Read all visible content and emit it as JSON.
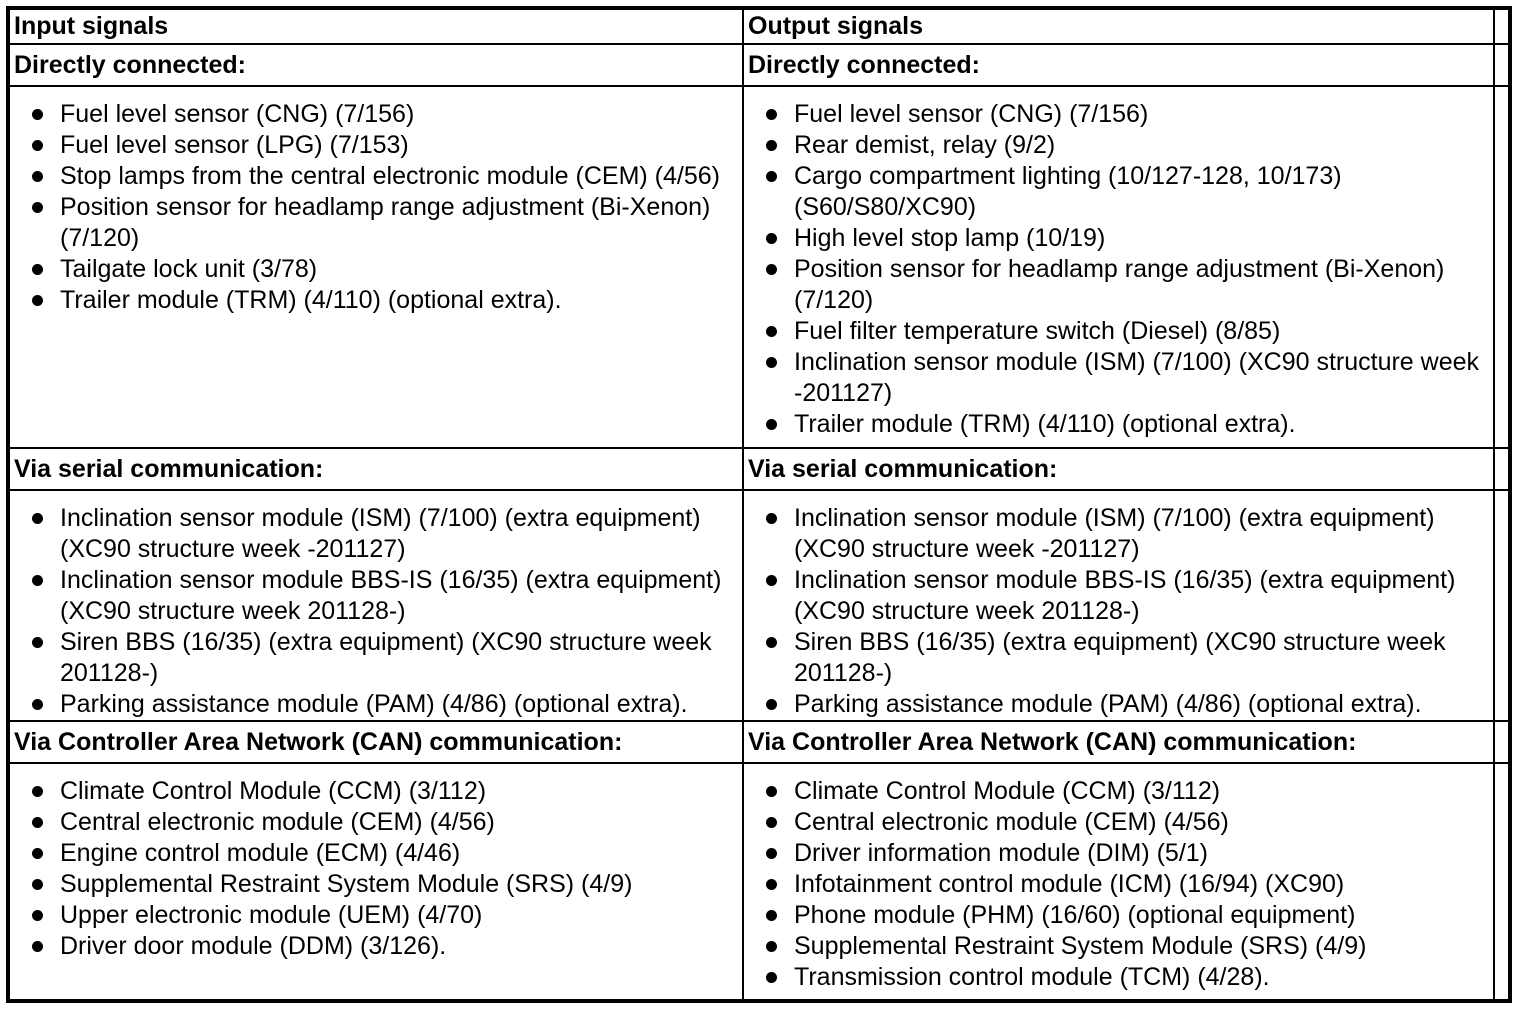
{
  "colors": {
    "border": "#000000",
    "text": "#000000",
    "background": "#ffffff"
  },
  "table": {
    "columns": [
      {
        "header": "Input signals",
        "sections": [
          {
            "title": "Directly connected:",
            "items": [
              "Fuel level sensor (CNG) (7/156)",
              "Fuel level sensor (LPG) (7/153)",
              "Stop lamps from the central electronic module (CEM) (4/56)",
              "Position sensor for headlamp range adjustment (Bi-Xenon)\n(7/120)",
              "Tailgate lock unit (3/78)",
              "Trailer module (TRM) (4/110) (optional extra)."
            ]
          },
          {
            "title": "Via serial communication:",
            "items": [
              "Inclination sensor module (ISM) (7/100) (extra equipment)\n(XC90 structure week -201127)",
              "Inclination sensor module BBS-IS (16/35) (extra equipment)\n(XC90 structure week 201128-)",
              "Siren BBS (16/35) (extra equipment) (XC90 structure week\n201128-)",
              "Parking assistance module (PAM) (4/86) (optional extra)."
            ]
          },
          {
            "title": "Via Controller Area Network (CAN) communication:",
            "items": [
              "Climate Control Module (CCM) (3/112)",
              "Central electronic module (CEM) (4/56)",
              "Engine control module (ECM) (4/46)",
              "Supplemental Restraint System Module (SRS) (4/9)",
              "Upper electronic module (UEM) (4/70)",
              "Driver door module (DDM) (3/126)."
            ]
          }
        ]
      },
      {
        "header": "Output signals",
        "sections": [
          {
            "title": "Directly connected:",
            "items": [
              "Fuel level sensor (CNG) (7/156)",
              "Rear demist, relay (9/2)",
              "Cargo compartment lighting (10/127-128, 10/173)\n(S60/S80/XC90)",
              "High level stop lamp (10/19)",
              "Position sensor for headlamp range adjustment (Bi-Xenon)\n(7/120)",
              "Fuel filter temperature switch (Diesel) (8/85)",
              "Inclination sensor module (ISM) (7/100) (XC90 structure week\n-201127)",
              "Trailer module (TRM) (4/110) (optional extra)."
            ]
          },
          {
            "title": "Via serial communication:",
            "items": [
              "Inclination sensor module (ISM) (7/100) (extra equipment)\n(XC90 structure week -201127)",
              "Inclination sensor module BBS-IS (16/35) (extra equipment)\n(XC90 structure week 201128-)",
              "Siren BBS (16/35) (extra equipment) (XC90 structure week\n201128-)",
              "Parking assistance module (PAM) (4/86) (optional extra)."
            ]
          },
          {
            "title": "Via Controller Area Network (CAN) communication:",
            "items": [
              "Climate Control Module (CCM) (3/112)",
              "Central electronic module (CEM) (4/56)",
              "Driver information module (DIM) (5/1)",
              "Infotainment control module (ICM) (16/94) (XC90)",
              "Phone module (PHM) (16/60) (optional equipment)",
              "Supplemental Restraint System Module (SRS) (4/9)",
              "Transmission control module (TCM) (4/28)."
            ]
          }
        ]
      }
    ]
  }
}
